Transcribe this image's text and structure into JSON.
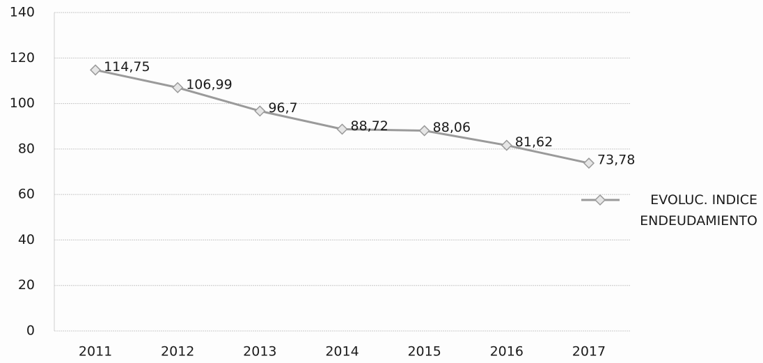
{
  "chart_data": {
    "type": "line",
    "categories": [
      "2011",
      "2012",
      "2013",
      "2014",
      "2015",
      "2016",
      "2017"
    ],
    "series": [
      {
        "name": "EVOLUC. INDICE ENDEUDAMIENTO",
        "color": "#9a9a9a",
        "values": [
          114.75,
          106.99,
          96.7,
          88.72,
          88.06,
          81.62,
          73.78
        ],
        "value_labels": [
          "114,75",
          "106,99",
          "96,7",
          "88,72",
          "88,06",
          "81,62",
          "73,78"
        ]
      }
    ],
    "ylim": [
      0,
      140
    ],
    "yticks": [
      0,
      20,
      40,
      60,
      80,
      100,
      120,
      140
    ],
    "grid": true,
    "legend": "right"
  }
}
